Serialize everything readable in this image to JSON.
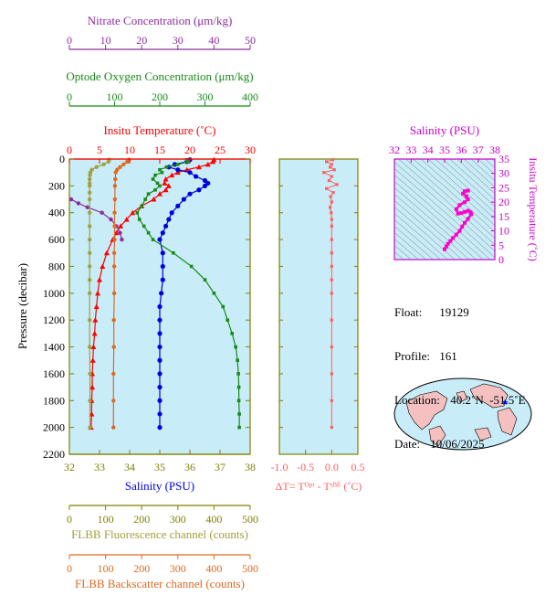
{
  "colors": {
    "nitrate": "#8b2c9c",
    "oxygen": "#1a8a1a",
    "temperature": "#ff0000",
    "salinity": "#0000dd",
    "fluorescence": "#a0a040",
    "backscatter": "#e06820",
    "delta_t": "#ff6060",
    "ts_trace": "#ff00cc",
    "plot_bg": "#c8ecf8",
    "axis_dark": "#808000",
    "ts_axis": "#cc00cc"
  },
  "axes": {
    "nitrate": {
      "label": "Nitrate Concentration (μm/kg)",
      "ticks": [
        "0",
        "10",
        "20",
        "30",
        "40",
        "50"
      ],
      "range": [
        0,
        50
      ]
    },
    "oxygen": {
      "label": "Optode Oxygen Concentration (μm/kg)",
      "ticks": [
        "0",
        "100",
        "200",
        "300",
        "400"
      ],
      "range": [
        0,
        400
      ]
    },
    "temperature": {
      "label": "Insitu Temperature (˚C)",
      "ticks": [
        "0",
        "5",
        "10",
        "15",
        "20",
        "25",
        "30"
      ],
      "range": [
        0,
        30
      ]
    },
    "salinity": {
      "label": "Salinity (PSU)",
      "ticks": [
        "32",
        "33",
        "34",
        "35",
        "36",
        "37",
        "38"
      ],
      "range": [
        32,
        38
      ]
    },
    "pressure": {
      "label": "Pressure (decibar)",
      "ticks": [
        "0",
        "200",
        "400",
        "600",
        "800",
        "1000",
        "1200",
        "1400",
        "1600",
        "1800",
        "2000",
        "2200"
      ],
      "range": [
        0,
        2200
      ]
    },
    "delta_t": {
      "label": "ΔT= Tᴼᵖᵗ - Tˢᴮᴱ (˚C)",
      "ticks": [
        "-1.0",
        "-0.5",
        "0.0",
        "0.5"
      ],
      "range": [
        -1.0,
        0.5
      ]
    },
    "fluorescence": {
      "label": "FLBB Fluorescence channel (counts)",
      "ticks": [
        "0",
        "100",
        "200",
        "300",
        "400",
        "500"
      ],
      "range": [
        0,
        500
      ]
    },
    "backscatter": {
      "label": "FLBB Backscatter channel (counts)",
      "ticks": [
        "0",
        "100",
        "200",
        "300",
        "400",
        "500"
      ],
      "range": [
        0,
        500
      ]
    },
    "ts_salinity": {
      "label": "Salinity (PSU)",
      "ticks": [
        "32",
        "33",
        "34",
        "35",
        "36",
        "37",
        "38"
      ],
      "range": [
        32,
        38
      ]
    },
    "ts_temperature": {
      "label": "Insitu Temperature (˚C)",
      "ticks": [
        "0",
        "5",
        "10",
        "15",
        "20",
        "25",
        "30",
        "35"
      ],
      "range": [
        0,
        35
      ]
    }
  },
  "info": {
    "float_label": "Float:",
    "float_value": "19129",
    "profile_label": "Profile:",
    "profile_value": "161",
    "location_label": "Location:",
    "location_value": "40.2˚N  -51.5˚E",
    "date_label": "Date:",
    "date_value": "10/06/2025"
  },
  "chart_data": [
    {
      "type": "line",
      "name": "Profile plot",
      "y_axis": "pressure",
      "ylim": [
        0,
        2200
      ],
      "series": [
        {
          "name": "temperature",
          "axis": "temperature",
          "p": [
            5,
            20,
            40,
            60,
            80,
            100,
            120,
            150,
            180,
            200,
            230,
            260,
            300,
            350,
            400,
            450,
            500,
            550,
            600,
            700,
            800,
            900,
            1000,
            1100,
            1200,
            1300,
            1400,
            1500,
            1600,
            1700,
            1800,
            1900,
            2000
          ],
          "v": [
            24.0,
            23.8,
            23.0,
            21.5,
            19.5,
            18.0,
            17.0,
            16.0,
            15.8,
            16.5,
            16.0,
            15.0,
            14.0,
            12.0,
            10.5,
            9.5,
            8.5,
            7.8,
            7.2,
            6.2,
            5.5,
            5.0,
            4.7,
            4.5,
            4.3,
            4.2,
            4.0,
            3.9,
            3.8,
            3.8,
            3.7,
            3.7,
            3.6
          ]
        },
        {
          "name": "salinity",
          "axis": "salinity",
          "p": [
            5,
            20,
            40,
            60,
            80,
            100,
            130,
            160,
            180,
            200,
            230,
            260,
            300,
            350,
            400,
            450,
            500,
            550,
            600,
            700,
            800,
            900,
            1000,
            1100,
            1200,
            1300,
            1400,
            1500,
            1600,
            1700,
            1800,
            1900,
            2000
          ],
          "v": [
            36.0,
            35.9,
            35.5,
            35.3,
            35.6,
            36.0,
            36.2,
            36.5,
            36.6,
            36.5,
            36.3,
            36.0,
            35.8,
            35.6,
            35.4,
            35.3,
            35.2,
            35.1,
            35.0,
            35.1,
            35.1,
            35.1,
            35.05,
            35.0,
            35.0,
            35.0,
            35.0,
            35.0,
            35.0,
            35.0,
            35.0,
            35.0,
            35.0
          ]
        },
        {
          "name": "oxygen",
          "axis": "oxygen",
          "p": [
            5,
            20,
            40,
            60,
            80,
            100,
            120,
            150,
            180,
            200,
            230,
            260,
            300,
            350,
            400,
            450,
            500,
            550,
            600,
            700,
            800,
            900,
            1000,
            1100,
            1200,
            1300,
            1400,
            1500,
            1600,
            1700,
            1800,
            1900,
            2000
          ],
          "v": [
            260,
            262,
            240,
            215,
            200,
            205,
            190,
            185,
            195,
            200,
            190,
            175,
            168,
            160,
            150,
            155,
            165,
            175,
            185,
            230,
            270,
            300,
            320,
            340,
            350,
            360,
            368,
            372,
            374,
            375,
            375,
            376,
            376
          ]
        },
        {
          "name": "nitrate",
          "axis": "nitrate",
          "p": [
            300,
            330,
            360,
            400,
            450,
            500,
            550,
            600
          ],
          "v": [
            0.5,
            2.5,
            5.0,
            9.0,
            11.5,
            13.0,
            14.0,
            14.5
          ]
        },
        {
          "name": "fluorescence",
          "axis": "fluorescence",
          "p": [
            5,
            20,
            40,
            60,
            80,
            100,
            120,
            150,
            180,
            200,
            250,
            300,
            400,
            500,
            600,
            700,
            800,
            900,
            1000,
            1200,
            1400,
            1600,
            1800,
            2000
          ],
          "v": [
            110,
            108,
            95,
            75,
            62,
            58,
            57,
            56,
            56,
            56,
            56,
            56,
            56,
            56,
            56,
            56,
            56,
            56,
            56,
            56,
            56,
            57,
            57,
            57
          ]
        },
        {
          "name": "backscatter",
          "axis": "backscatter",
          "p": [
            5,
            20,
            40,
            60,
            80,
            100,
            150,
            200,
            300,
            400,
            500,
            600,
            700,
            800,
            1000,
            1200,
            1400,
            1600,
            1800,
            2000
          ],
          "v": [
            165,
            160,
            150,
            140,
            132,
            128,
            127,
            126,
            126,
            125,
            125,
            125,
            124,
            124,
            124,
            123,
            123,
            122,
            122,
            122
          ]
        }
      ]
    },
    {
      "type": "line",
      "name": "Delta T",
      "x_axis": "delta_t",
      "y_axis": "pressure",
      "p": [
        5,
        20,
        40,
        60,
        80,
        100,
        130,
        160,
        190,
        220,
        250,
        280,
        320,
        360,
        400,
        450,
        500,
        600,
        700,
        800,
        900,
        1000,
        1200,
        1400,
        1600,
        1800,
        2000
      ],
      "v": [
        0.02,
        -0.1,
        0.0,
        -0.03,
        0.05,
        -0.15,
        0.0,
        -0.05,
        0.1,
        -0.1,
        0.03,
        -0.02,
        0.0,
        -0.03,
        -0.01,
        0.0,
        0.0,
        0.0,
        0.0,
        0.0,
        0.0,
        0.0,
        0.0,
        0.0,
        0.0,
        0.0,
        0.0
      ]
    },
    {
      "type": "scatter",
      "name": "T-S diagram",
      "x_axis": "ts_salinity",
      "y_axis": "ts_temperature",
      "s": [
        35.0,
        35.1,
        35.2,
        35.35,
        35.5,
        35.7,
        35.9,
        36.05,
        36.2,
        36.4,
        36.6,
        36.55,
        36.4,
        36.2,
        36.0,
        35.8,
        35.7,
        35.9,
        36.2,
        36.4,
        36.3,
        36.1,
        36.2,
        36.4
      ],
      "t": [
        3.6,
        4.5,
        5.5,
        6.5,
        7.5,
        8.7,
        10.0,
        11.5,
        12.8,
        14.2,
        15.8,
        16.5,
        17.0,
        16.6,
        16.2,
        16.0,
        17.5,
        19.0,
        20.0,
        21.0,
        22.0,
        23.0,
        23.8,
        24.0
      ]
    }
  ]
}
